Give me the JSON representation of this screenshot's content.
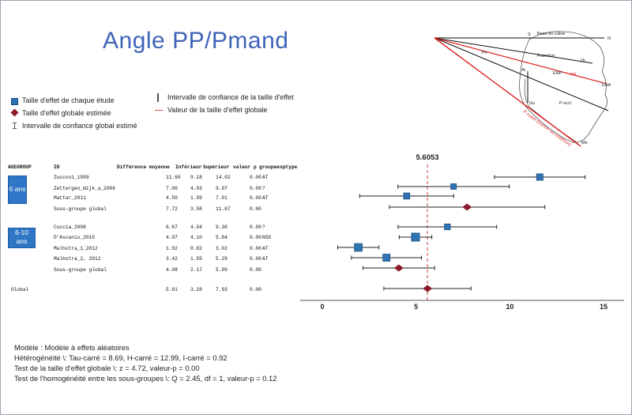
{
  "title": "Angle PP/Pmand",
  "legend": {
    "study_effect": "Taille d'effet de chaque étude",
    "global_effect": "Taille d'effet globale estimée",
    "global_ci": "Intervalle de confiance global estimé",
    "effect_ci": "Intervalle de confiance de la taille d'effet",
    "global_value": "Valeur de la taille d'effet globale"
  },
  "diagram_labels": {
    "base_crane": "Base du crâne",
    "n": "N",
    "s": "S",
    "po": "Po",
    "frankfort": "Francfort",
    "or": "Or",
    "ar": "Ar",
    "enp": "ENP",
    "pp": "PP",
    "ena": "ENA",
    "go": "Go",
    "pocl": "P occl",
    "pmand": "P mand (Gonion au Gnathion)",
    "me": "Me"
  },
  "table": {
    "headers": [
      "AGEGROUP",
      "ID",
      "Différence moyenne",
      "Inférieur",
      "Supérieur",
      "valeur p",
      "groupeexptype"
    ],
    "groups": [
      {
        "label_line1": "6 ans",
        "label_line2": ""
      },
      {
        "label_line1": "6-10",
        "label_line2": "ans"
      }
    ],
    "rows": [
      {
        "id": "Zucconi_1999",
        "mean": "11.60",
        "low": "9.18",
        "high": "14.02",
        "p": "0.00",
        "type": "AT"
      },
      {
        "id": "Zettergen_Wijk_a_2006",
        "mean": "7.00",
        "low": "4.03",
        "high": "9.97",
        "p": "0.00",
        "type": "?"
      },
      {
        "id": "Mattar_2011",
        "mean": "4.50",
        "low": "1.99",
        "high": "7.01",
        "p": "0.00",
        "type": "AT"
      },
      {
        "id": "Sous-groupe global",
        "mean": "7.72",
        "low": "3.58",
        "high": "11.87",
        "p": "0.00",
        "type": ""
      },
      {
        "id": "Cuccia_2008",
        "mean": "6.67",
        "low": "4.04",
        "high": "9.30",
        "p": "0.00",
        "type": "?"
      },
      {
        "id": "D'Ascanio_2010",
        "mean": "4.97",
        "low": "4.10",
        "high": "5.84",
        "p": "0.00",
        "type": "NSD"
      },
      {
        "id": "Malhotra_1_2012",
        "mean": "1.92",
        "low": "0.82",
        "high": "3.02",
        "p": "0.00",
        "type": "AT"
      },
      {
        "id": "Malhotra_2, 2012",
        "mean": "3.42",
        "low": "1.55",
        "high": "5.29",
        "p": "0.00",
        "type": "AT"
      },
      {
        "id": "Sous-groupe global",
        "mean": "4.08",
        "low": "2.17",
        "high": "5.99",
        "p": "0.00",
        "type": ""
      }
    ],
    "global_row": {
      "label": "Global",
      "mean": "5.61",
      "low": "3.28",
      "high": "7.93",
      "p": "0.00"
    }
  },
  "chart_data": {
    "type": "forest",
    "global_value_label": "5.6053",
    "global_value": 5.6053,
    "xlim": [
      0,
      15
    ],
    "xticks": [
      "0",
      "5",
      "10",
      "15"
    ],
    "studies": [
      {
        "name": "Zucconi_1999",
        "effect": 11.6,
        "low": 9.18,
        "high": 14.02,
        "kind": "study",
        "weight": 0.4
      },
      {
        "name": "Zettergen_Wijk_a_2006",
        "effect": 7.0,
        "low": 4.03,
        "high": 9.97,
        "kind": "study",
        "weight": 0.25
      },
      {
        "name": "Mattar_2011",
        "effect": 4.5,
        "low": 1.99,
        "high": 7.01,
        "kind": "study",
        "weight": 0.35
      },
      {
        "name": "Sous-groupe global",
        "effect": 7.72,
        "low": 3.58,
        "high": 11.87,
        "kind": "subtotal",
        "weight": 0
      },
      {
        "name": "Cuccia_2008",
        "effect": 6.67,
        "low": 4.04,
        "high": 9.3,
        "kind": "study",
        "weight": 0.3
      },
      {
        "name": "D'Ascanio_2010",
        "effect": 4.97,
        "low": 4.1,
        "high": 5.84,
        "kind": "study",
        "weight": 0.65
      },
      {
        "name": "Malhotra_1_2012",
        "effect": 1.92,
        "low": 0.82,
        "high": 3.02,
        "kind": "study",
        "weight": 0.6
      },
      {
        "name": "Malhotra_2, 2012",
        "effect": 3.42,
        "low": 1.55,
        "high": 5.29,
        "kind": "study",
        "weight": 0.5
      },
      {
        "name": "Sous-groupe global",
        "effect": 4.08,
        "low": 2.17,
        "high": 5.99,
        "kind": "subtotal",
        "weight": 0
      },
      {
        "name": "Global",
        "effect": 5.61,
        "low": 3.28,
        "high": 7.93,
        "kind": "global",
        "weight": 0
      }
    ],
    "colors": {
      "study": "#2e74b5",
      "summary": "#8b1a2b",
      "reference": "#d23b3b"
    }
  },
  "stats": {
    "model": "Modèle : Modèle à effets aléatoires",
    "heterogeneity": "Hétérogénéité \\: Tau-carré = 8.69, H-carré = 12.99, I-carré = 0.92",
    "global_test": "Test de la taille d'effet globale \\: z = 4.72, valeur-p = 0.00",
    "subgroup_test": "Test de l'homogénéité entre les sous-groupes \\: Q  = 2.45, df = 1, valeur-p = 0.12"
  }
}
